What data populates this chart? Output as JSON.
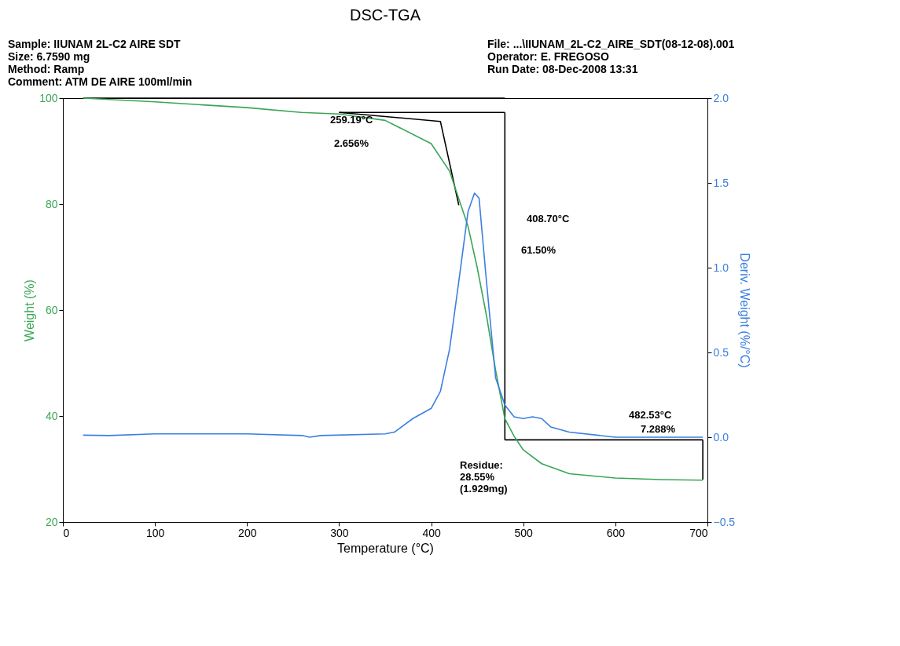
{
  "chart_data": {
    "type": "line",
    "title": "DSC-TGA",
    "xlabel": "Temperature (°C)",
    "ylabel": "Weight (%)",
    "y2label": "Deriv. Weight (%/°C)",
    "xlim": [
      0,
      700
    ],
    "xticks": [
      0,
      100,
      200,
      300,
      400,
      500,
      600,
      700
    ],
    "ylim": [
      20,
      100
    ],
    "yticks": [
      20,
      40,
      60,
      80,
      100
    ],
    "y2lim": [
      -0.5,
      2.0
    ],
    "y2ticks": [
      -0.5,
      {
        "value": 0,
        "label": "0.0"
      },
      0.5,
      {
        "value": 1,
        "label": "1.0"
      },
      1.5,
      {
        "value": 2,
        "label": "2.0"
      }
    ],
    "grid": false,
    "legend": false,
    "line_style": "solid",
    "marker": "none",
    "series": [
      {
        "color": "#3b7fe0",
        "axis": "y2",
        "x": [
          22,
          50,
          100,
          200,
          260,
          268,
          280,
          350,
          360,
          380,
          400,
          410,
          420,
          430,
          440,
          447,
          452,
          460,
          470,
          480,
          490,
          500,
          510,
          520,
          530,
          550,
          600,
          650,
          695
        ],
        "values": [
          0.012,
          0.01,
          0.02,
          0.02,
          0.01,
          0.0,
          0.01,
          0.02,
          0.03,
          0.11,
          0.17,
          0.27,
          0.52,
          0.92,
          1.33,
          1.44,
          1.41,
          0.92,
          0.35,
          0.19,
          0.12,
          0.11,
          0.12,
          0.11,
          0.06,
          0.03,
          0.0,
          0.0,
          0.0
        ]
      },
      {
        "color": "#000000",
        "x": [
          22,
          480
        ],
        "values": [
          100,
          100
        ]
      },
      {
        "color": "#000000",
        "x": [
          300,
          480
        ],
        "values": [
          97.3,
          97.3
        ]
      },
      {
        "color": "#000000",
        "x": [
          300,
          410,
          430
        ],
        "values": [
          97.3,
          95.6,
          79.8
        ]
      },
      {
        "color": "#000000",
        "x": [
          480,
          480
        ],
        "values": [
          97.3,
          35.5
        ]
      },
      {
        "color": "#000000",
        "x": [
          480,
          695
        ],
        "values": [
          35.5,
          35.5
        ]
      },
      {
        "color": "#000000",
        "x": [
          695,
          695
        ],
        "values": [
          35.5,
          28
        ]
      },
      {
        "color": "#3aa655",
        "x": [
          22,
          100,
          200,
          259,
          300,
          350,
          400,
          420,
          440,
          450,
          460,
          470,
          480,
          490,
          500,
          520,
          550,
          600,
          650,
          695
        ],
        "values": [
          100,
          99.3,
          98.2,
          97.3,
          97,
          95.8,
          91.4,
          86.2,
          75.8,
          68,
          59,
          48.6,
          39.5,
          36.2,
          33.6,
          31,
          29.1,
          28.3,
          28,
          27.9
        ]
      }
    ],
    "annotations": [
      "Sample: IIUNAM 2L-C2 AIRE SDT",
      "Size:  6.7590 mg",
      "Method: Ramp",
      "Comment: ATM DE AIRE 100ml/min",
      "File: ...\\IIUNAM_2L-C2_AIRE_SDT(08-12-08).001",
      "Operator: E. FREGOSO",
      "Run Date: 08-Dec-2008 13:31",
      "259.19°C",
      "2.656%",
      "408.70°C",
      "61.50%",
      "482.53°C",
      "7.288%",
      "Residue:\n28.55%\n(1.929mg)"
    ]
  }
}
